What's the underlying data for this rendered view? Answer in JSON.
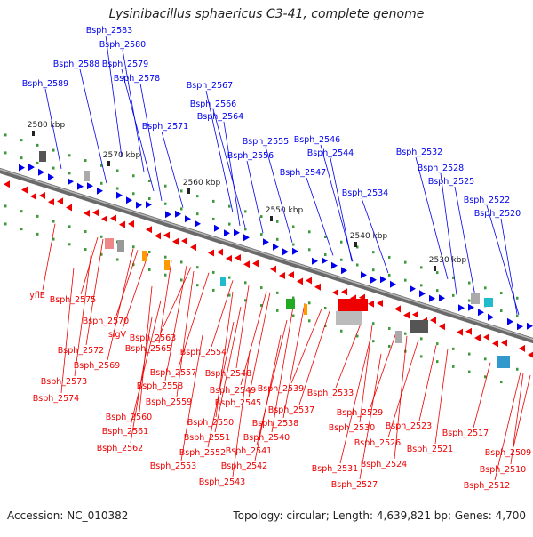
{
  "header": {
    "title": "Lysinibacillus sphaericus C3-41, complete genome"
  },
  "footer": {
    "accession": "Accession: NC_010382",
    "summary": "Topology: circular; Length: 4,639,821 bp; Genes: 4,700"
  },
  "colors": {
    "plus_strand": "#0000ee",
    "minus_strand": "#ee0000",
    "backbone": "#888888",
    "tick": "#3a9a3a"
  },
  "axis_labels": [
    "2580 kbp",
    "2570 kbp",
    "2560 kbp",
    "2550 kbp",
    "2540 kbp",
    "2530 kbp"
  ],
  "plus_genes": [
    "Bsph_2583",
    "Bsph_2580",
    "Bsph_2588",
    "Bsph_2579",
    "Bsph_2589",
    "Bsph_2578",
    "Bsph_2567",
    "Bsph_2566",
    "Bsph_2564",
    "Bsph_2571",
    "Bsph_2555",
    "Bsph_2546",
    "Bsph_2556",
    "Bsph_2544",
    "Bsph_2547",
    "Bsph_2532",
    "Bsph_2528",
    "Bsph_2525",
    "Bsph_2534",
    "Bsph_2522",
    "Bsph_2520"
  ],
  "minus_genes": [
    "yflE",
    "Bsph_2575",
    "Bsph_2570",
    "sigV",
    "Bsph_2563",
    "Bsph_2565",
    "Bsph_2572",
    "Bsph_2554",
    "Bsph_2569",
    "Bsph_2557",
    "Bsph_2548",
    "Bsph_2573",
    "Bsph_2558",
    "Bsph_2549",
    "Bsph_2539",
    "Bsph_2574",
    "Bsph_2559",
    "Bsph_2545",
    "Bsph_2533",
    "Bsph_2537",
    "Bsph_2560",
    "Bsph_2550",
    "Bsph_2538",
    "Bsph_2529",
    "Bsph_2561",
    "Bsph_2530",
    "Bsph_2523",
    "Bsph_2540",
    "Bsph_2551",
    "Bsph_2526",
    "Bsph_2521",
    "Bsph_2517",
    "Bsph_2562",
    "Bsph_2552",
    "Bsph_2541",
    "Bsph_2524",
    "Bsph_2509",
    "Bsph_2553",
    "Bsph_2542",
    "Bsph_2531",
    "Bsph_2510",
    "Bsph_2543",
    "Bsph_2527",
    "Bsph_2512"
  ]
}
